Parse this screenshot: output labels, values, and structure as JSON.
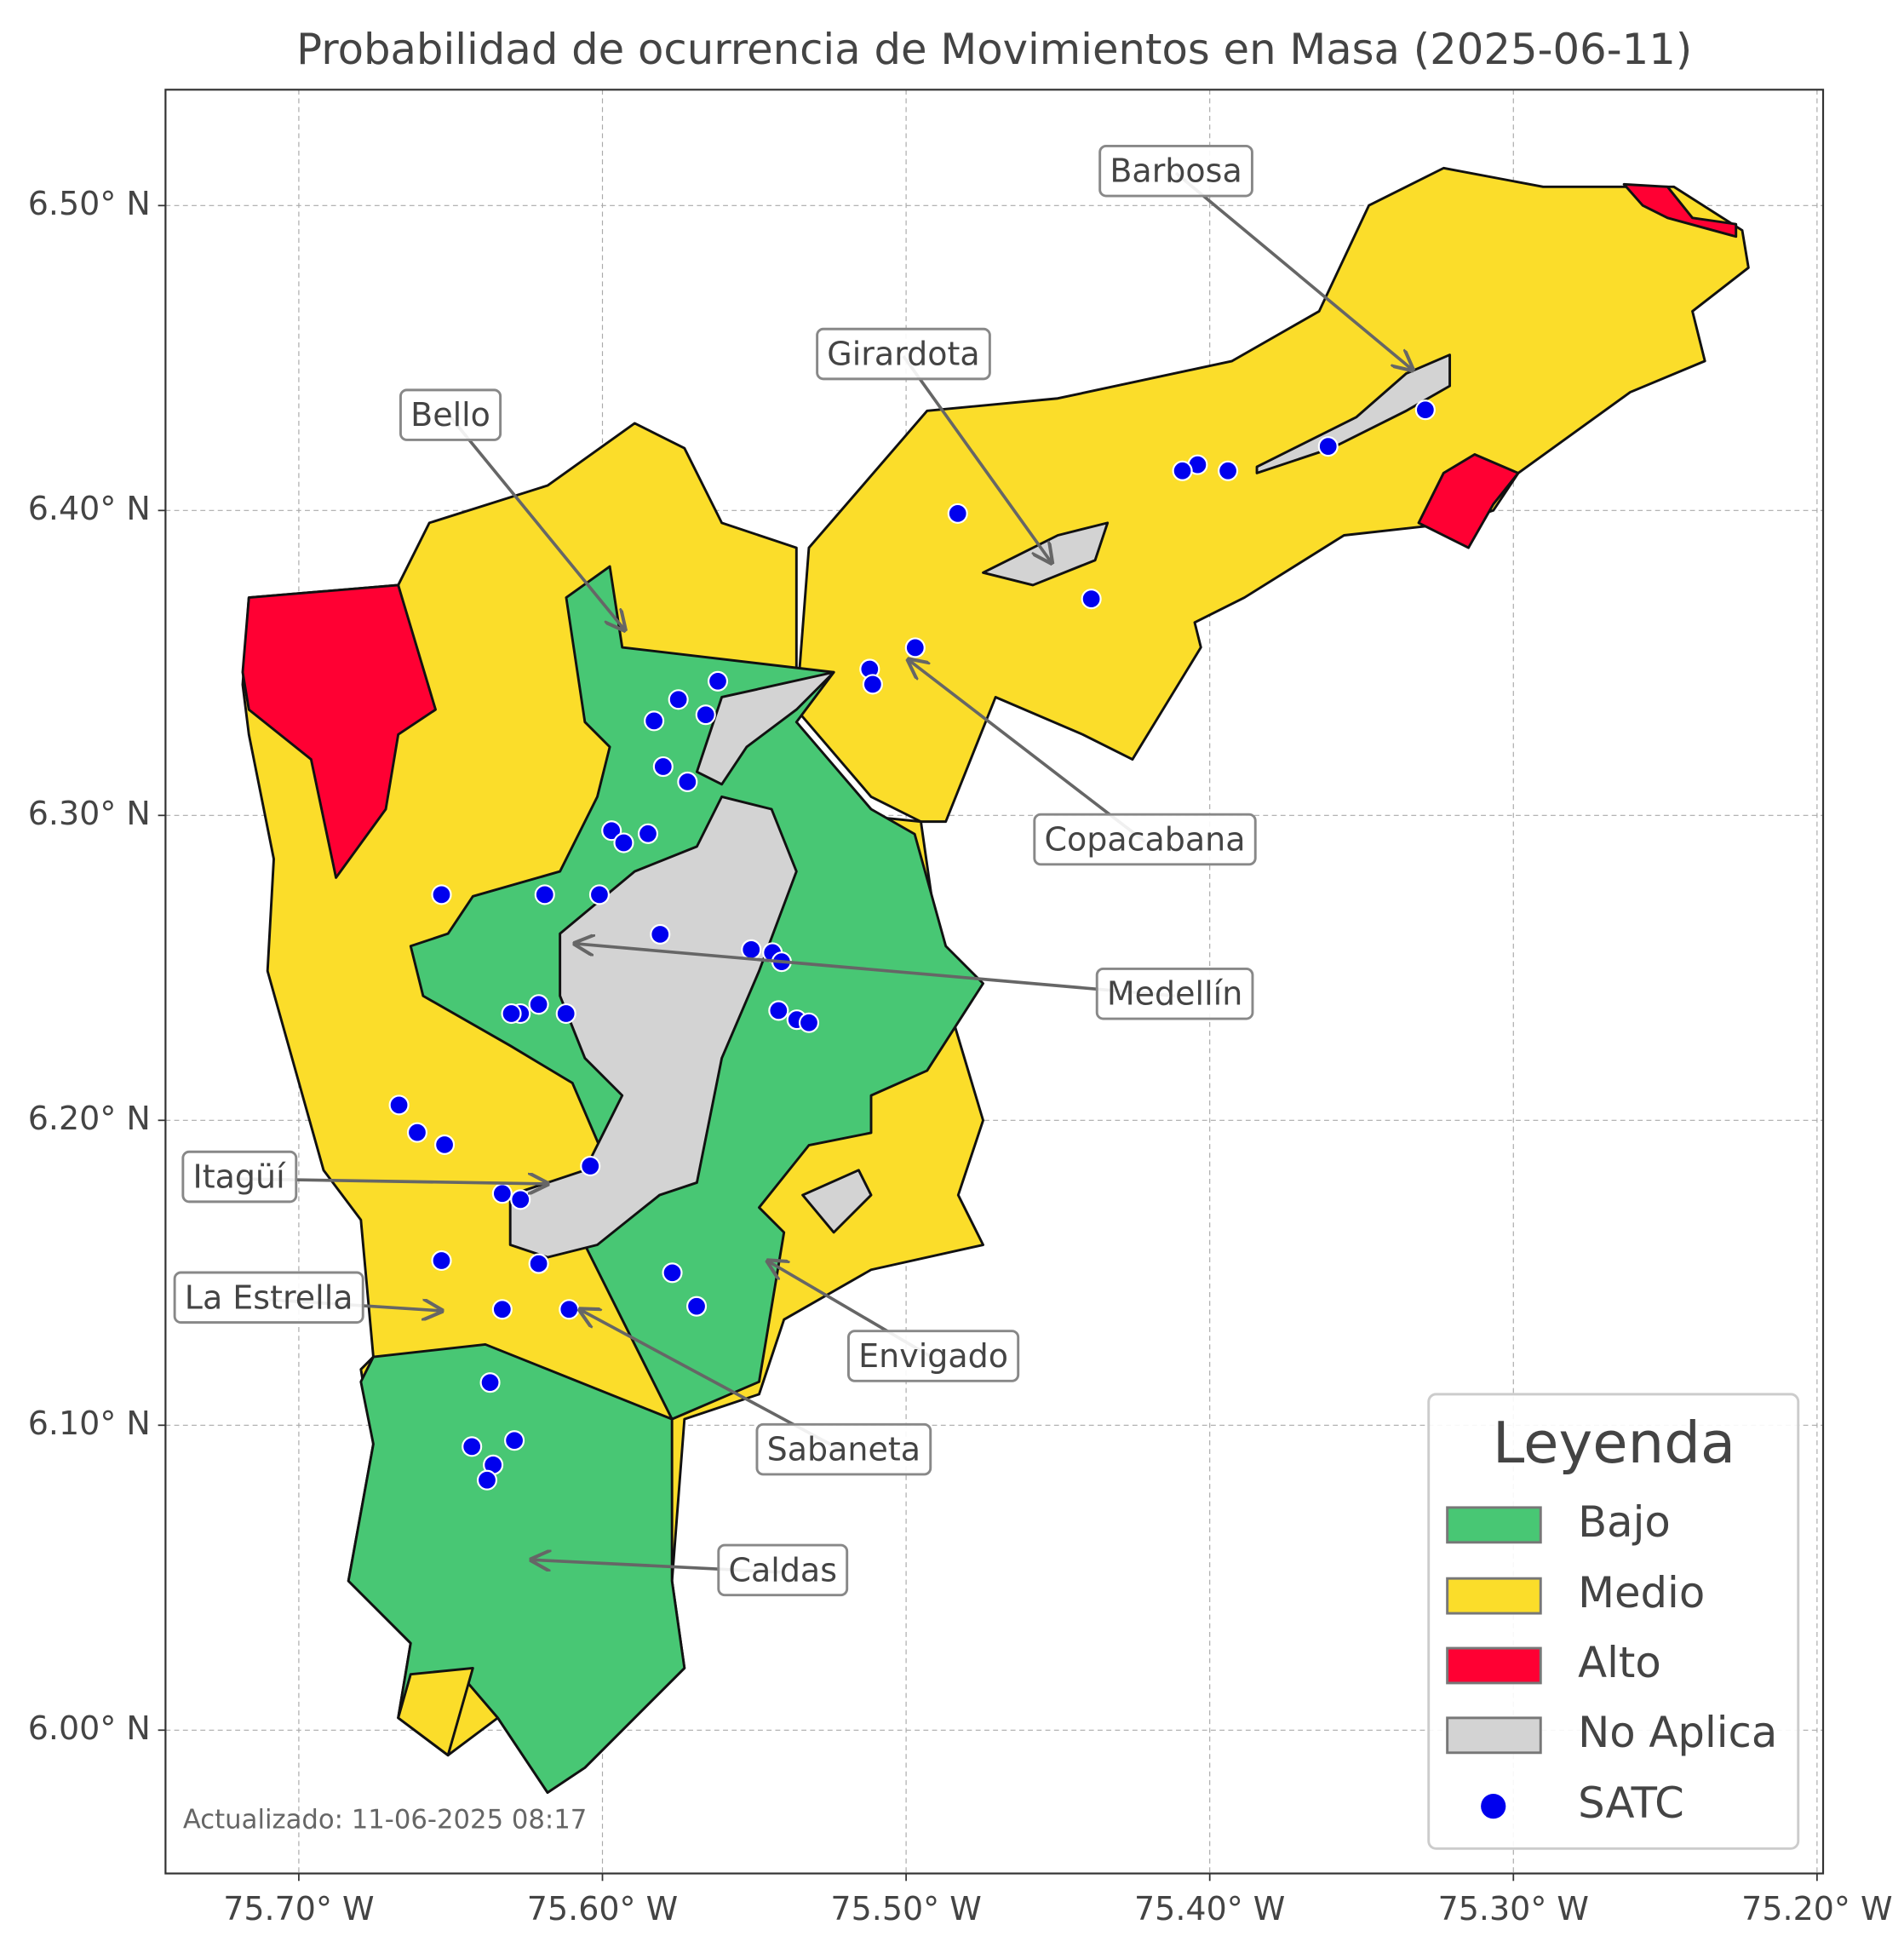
{
  "chart_data": {
    "type": "map",
    "title": "Probabilidad de ocurrencia de Movimientos en Masa (2025-06-11)",
    "xlim": [
      -75.7439,
      -75.198
    ],
    "ylim": [
      5.953,
      6.538
    ],
    "xticks": [
      {
        "value": -75.7,
        "label": "75.70° W"
      },
      {
        "value": -75.6,
        "label": "75.60° W"
      },
      {
        "value": -75.5,
        "label": "75.50° W"
      },
      {
        "value": -75.4,
        "label": "75.40° W"
      },
      {
        "value": -75.3,
        "label": "75.30° W"
      },
      {
        "value": -75.2,
        "label": "75.20° W"
      }
    ],
    "yticks": [
      {
        "value": 6.0,
        "label": "6.00° N"
      },
      {
        "value": 6.1,
        "label": "6.10° N"
      },
      {
        "value": 6.2,
        "label": "6.20° N"
      },
      {
        "value": 6.3,
        "label": "6.30° N"
      },
      {
        "value": 6.4,
        "label": "6.40° N"
      },
      {
        "value": 6.5,
        "label": "6.50° N"
      }
    ],
    "grid": true,
    "legend": {
      "title": "Leyenda",
      "position": "lower right",
      "entries": [
        {
          "name": "Bajo",
          "color": "#48c774"
        },
        {
          "name": "Medio",
          "color": "#fbdd2a"
        },
        {
          "name": "Alto",
          "color": "#ff0033"
        },
        {
          "name": "No Aplica",
          "color": "#d3d3d3"
        }
      ]
    },
    "series": [
      {
        "name": "SATC",
        "color": "#0000ee",
        "x": [
          -75.329,
          -75.361,
          -75.394,
          -75.404,
          -75.409,
          -75.483,
          -75.439,
          -75.497,
          -75.512,
          -75.511,
          -75.562,
          -75.575,
          -75.566,
          -75.583,
          -75.58,
          -75.572,
          -75.597,
          -75.585,
          -75.593,
          -75.653,
          -75.619,
          -75.601,
          -75.581,
          -75.551,
          -75.544,
          -75.541,
          -75.621,
          -75.627,
          -75.63,
          -75.612,
          -75.542,
          -75.536,
          -75.532,
          -75.667,
          -75.661,
          -75.652,
          -75.604,
          -75.633,
          -75.627,
          -75.653,
          -75.621,
          -75.577,
          -75.569,
          -75.633,
          -75.611,
          -75.637,
          -75.643,
          -75.629,
          -75.636,
          -75.638
        ],
        "values": [
          6.433,
          6.421,
          6.413,
          6.415,
          6.413,
          6.399,
          6.371,
          6.355,
          6.348,
          6.343,
          6.344,
          6.338,
          6.333,
          6.331,
          6.316,
          6.311,
          6.295,
          6.294,
          6.291,
          6.274,
          6.274,
          6.274,
          6.261,
          6.256,
          6.255,
          6.252,
          6.238,
          6.235,
          6.235,
          6.235,
          6.236,
          6.233,
          6.232,
          6.205,
          6.196,
          6.192,
          6.185,
          6.176,
          6.174,
          6.154,
          6.153,
          6.15,
          6.139,
          6.138,
          6.138,
          6.114,
          6.093,
          6.095,
          6.087,
          6.082
        ]
      }
    ],
    "annotations": [
      "Barbosa",
      "Girardota",
      "Bello",
      "Copacabana",
      "Medellín",
      "Itagüí",
      "La Estrella",
      "Envigado",
      "Sabaneta",
      "Caldas"
    ],
    "footnote": "Actualizado: 11-06-2025 08:17"
  }
}
